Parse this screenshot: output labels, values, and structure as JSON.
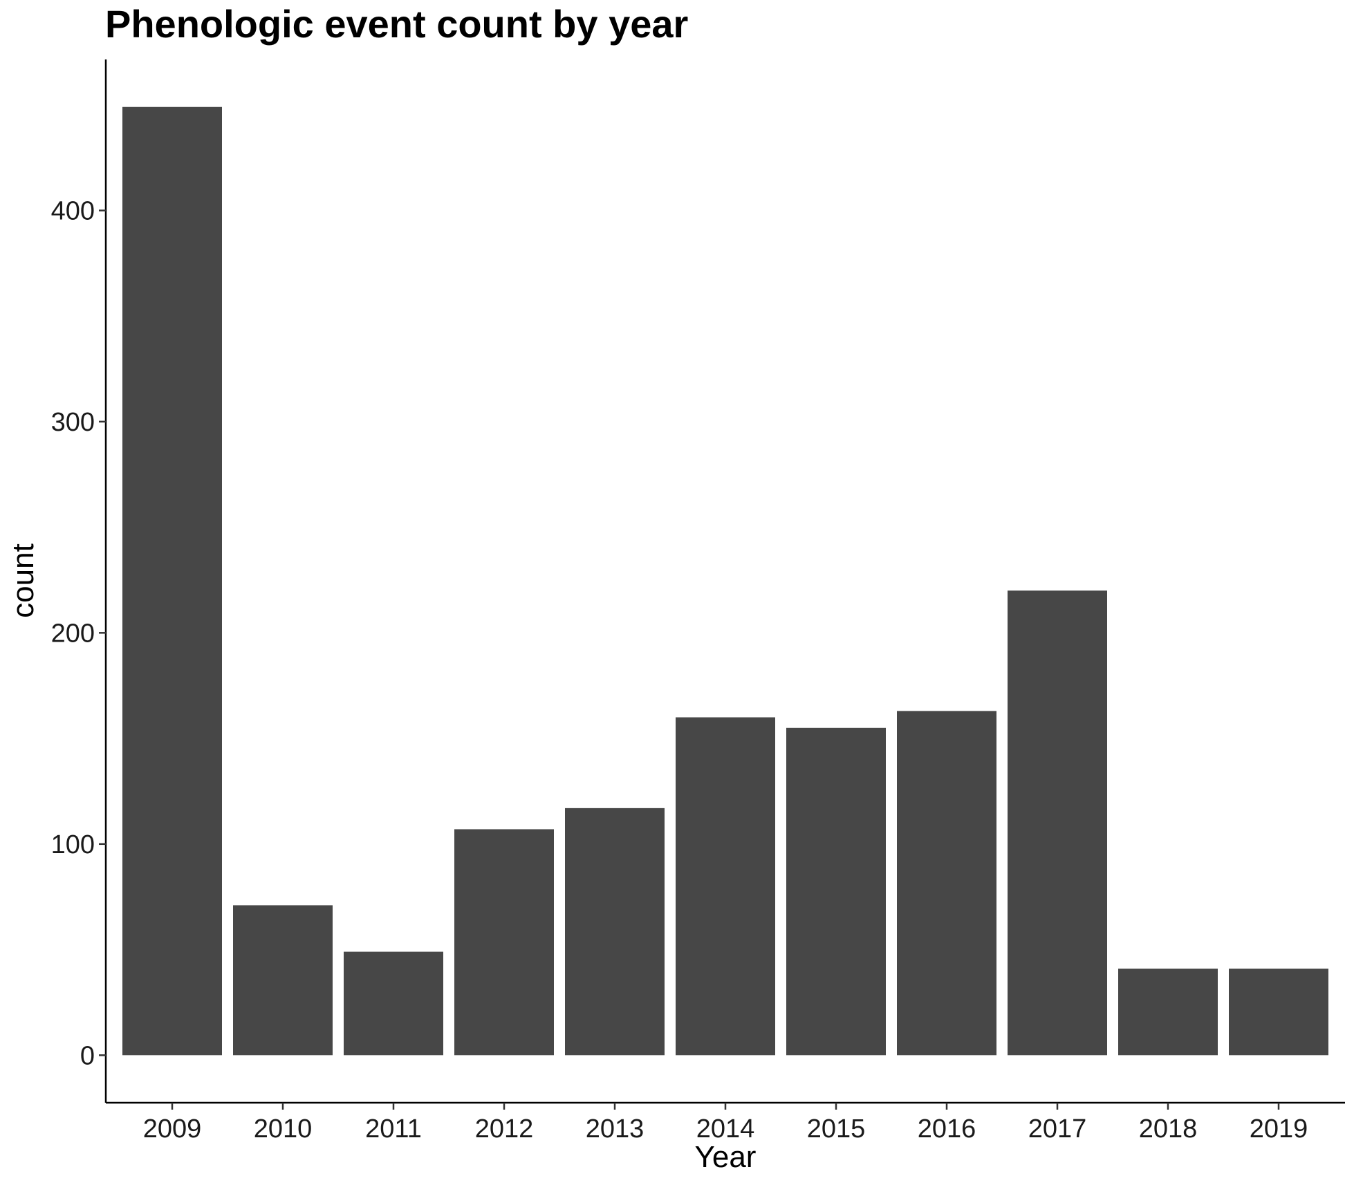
{
  "chart_data": {
    "type": "bar",
    "title": "Phenologic event count by year",
    "xlabel": "Year",
    "ylabel": "count",
    "categories": [
      "2009",
      "2010",
      "2011",
      "2012",
      "2013",
      "2014",
      "2015",
      "2016",
      "2017",
      "2018",
      "2019"
    ],
    "values": [
      449,
      71,
      49,
      107,
      117,
      160,
      155,
      163,
      220,
      41,
      41
    ],
    "ylim": [
      -22.5,
      471.5
    ],
    "yticks": [
      0,
      100,
      200,
      300,
      400
    ],
    "grid": false,
    "legend": "none",
    "bar_color": "#474747"
  }
}
